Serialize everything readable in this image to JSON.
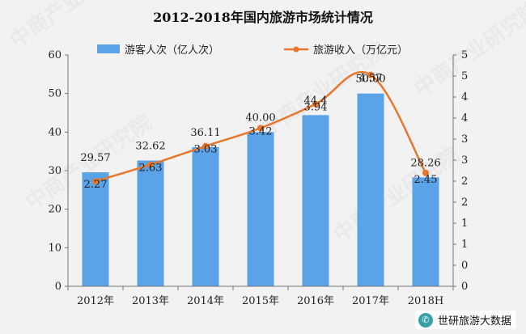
{
  "chart_data": {
    "type": "bar",
    "title": "2012-2018年国内旅游市场统计情况",
    "categories": [
      "2012年",
      "2013年",
      "2014年",
      "2015年",
      "2016年",
      "2017年",
      "2018H"
    ],
    "series": [
      {
        "name": "游客人次（亿人次）",
        "type": "bar",
        "axis": "left",
        "color": "#5aa3e8",
        "values": [
          29.57,
          32.62,
          36.11,
          40.0,
          44.4,
          50.0,
          28.26
        ]
      },
      {
        "name": "旅游收入（万亿元）",
        "type": "line",
        "axis": "right",
        "color": "#e8762c",
        "values": [
          2.27,
          2.63,
          3.03,
          3.42,
          3.94,
          4.57,
          2.45
        ]
      }
    ],
    "bar_value_labels": [
      "29.57",
      "32.62",
      "36.11",
      "40.00",
      "44.4",
      "50.00",
      "28.26"
    ],
    "line_value_labels": [
      "2.27",
      "2.63",
      "3.03",
      "3.42",
      "3.94",
      "4.57",
      "2.45"
    ],
    "y_left": {
      "min": 0,
      "max": 60,
      "ticks": [
        "0",
        "10",
        "20",
        "30",
        "40",
        "50",
        "60"
      ]
    },
    "y_right": {
      "min": 0,
      "max": 5,
      "ticks": [
        "0",
        "0",
        "1",
        "1",
        "2",
        "2",
        "3",
        "3",
        "4",
        "4",
        "5",
        "5"
      ]
    },
    "legend_position": "top",
    "grid": false
  },
  "watermark": {
    "text": "中商产业研究院"
  },
  "source_badge": {
    "icon": "wechat-icon",
    "label": "世研旅游大数据"
  }
}
